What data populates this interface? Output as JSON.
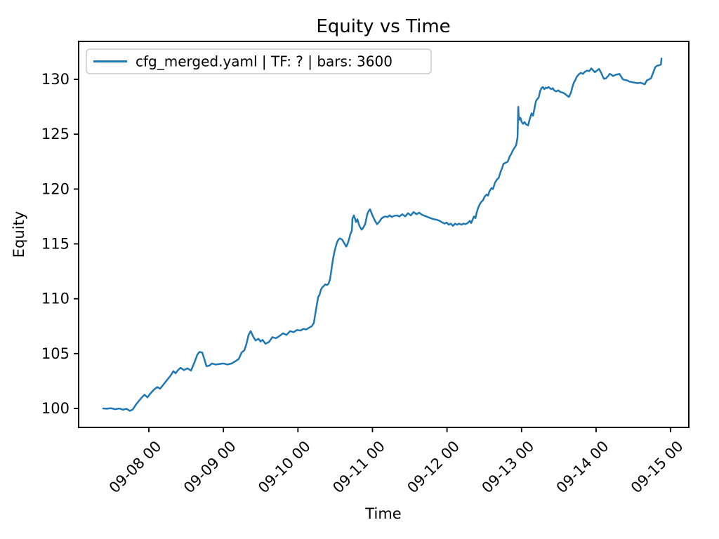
{
  "figure": {
    "title": "Equity vs Time",
    "xlabel": "Time",
    "ylabel": "Equity"
  },
  "chart_data": {
    "type": "line",
    "title": "Equity vs Time",
    "xlabel": "Time",
    "ylabel": "Equity",
    "grid": false,
    "legend_position": "upper left",
    "x_unit": "days relative to 09-08 00 tick",
    "xlim": [
      -0.942,
      7.244
    ],
    "ylim": [
      98.27,
      133.46
    ],
    "y_ticks": [
      100,
      105,
      110,
      115,
      120,
      125,
      130
    ],
    "x_ticks": [
      {
        "t": 0,
        "label": "09-08 00"
      },
      {
        "t": 1,
        "label": "09-09 00"
      },
      {
        "t": 2,
        "label": "09-10 00"
      },
      {
        "t": 3,
        "label": "09-11 00"
      },
      {
        "t": 4,
        "label": "09-12 00"
      },
      {
        "t": 5,
        "label": "09-13 00"
      },
      {
        "t": 6,
        "label": "09-14 00"
      },
      {
        "t": 7,
        "label": "09-15 00"
      }
    ],
    "series": [
      {
        "name": "cfg_merged.yaml | TF: ? | bars: 3600",
        "color": "#1f77b4",
        "points": [
          [
            -0.612,
            100.0
          ],
          [
            -0.565,
            99.97
          ],
          [
            -0.509,
            100.02
          ],
          [
            -0.452,
            99.93
          ],
          [
            -0.396,
            100.0
          ],
          [
            -0.349,
            99.88
          ],
          [
            -0.301,
            99.97
          ],
          [
            -0.254,
            99.78
          ],
          [
            -0.217,
            99.9
          ],
          [
            -0.179,
            100.3
          ],
          [
            -0.132,
            100.7
          ],
          [
            -0.094,
            101.0
          ],
          [
            -0.057,
            101.25
          ],
          [
            -0.019,
            101.0
          ],
          [
            0.019,
            101.35
          ],
          [
            0.066,
            101.7
          ],
          [
            0.113,
            101.95
          ],
          [
            0.151,
            101.8
          ],
          [
            0.198,
            102.2
          ],
          [
            0.245,
            102.6
          ],
          [
            0.292,
            103.0
          ],
          [
            0.33,
            103.4
          ],
          [
            0.358,
            103.2
          ],
          [
            0.386,
            103.45
          ],
          [
            0.424,
            103.7
          ],
          [
            0.471,
            103.5
          ],
          [
            0.518,
            103.65
          ],
          [
            0.565,
            103.45
          ],
          [
            0.612,
            104.2
          ],
          [
            0.65,
            104.9
          ],
          [
            0.678,
            105.15
          ],
          [
            0.716,
            105.1
          ],
          [
            0.744,
            104.5
          ],
          [
            0.773,
            103.85
          ],
          [
            0.81,
            103.9
          ],
          [
            0.848,
            104.1
          ],
          [
            0.895,
            104.0
          ],
          [
            0.942,
            104.05
          ],
          [
            0.999,
            104.1
          ],
          [
            1.055,
            104.0
          ],
          [
            1.112,
            104.1
          ],
          [
            1.159,
            104.3
          ],
          [
            1.206,
            104.5
          ],
          [
            1.244,
            105.1
          ],
          [
            1.281,
            105.3
          ],
          [
            1.31,
            105.9
          ],
          [
            1.338,
            106.7
          ],
          [
            1.366,
            107.05
          ],
          [
            1.404,
            106.5
          ],
          [
            1.432,
            106.2
          ],
          [
            1.47,
            106.35
          ],
          [
            1.498,
            106.1
          ],
          [
            1.526,
            106.25
          ],
          [
            1.564,
            105.9
          ],
          [
            1.611,
            106.05
          ],
          [
            1.658,
            106.5
          ],
          [
            1.705,
            106.4
          ],
          [
            1.752,
            106.6
          ],
          [
            1.8,
            106.85
          ],
          [
            1.847,
            106.7
          ],
          [
            1.894,
            107.05
          ],
          [
            1.941,
            106.95
          ],
          [
            1.988,
            107.15
          ],
          [
            2.035,
            107.1
          ],
          [
            2.073,
            107.25
          ],
          [
            2.11,
            107.2
          ],
          [
            2.148,
            107.35
          ],
          [
            2.186,
            107.5
          ],
          [
            2.214,
            107.8
          ],
          [
            2.233,
            108.6
          ],
          [
            2.252,
            109.4
          ],
          [
            2.271,
            110.15
          ],
          [
            2.289,
            110.35
          ],
          [
            2.308,
            110.8
          ],
          [
            2.327,
            111.05
          ],
          [
            2.346,
            111.15
          ],
          [
            2.365,
            111.3
          ],
          [
            2.393,
            111.25
          ],
          [
            2.412,
            111.4
          ],
          [
            2.431,
            111.8
          ],
          [
            2.45,
            112.7
          ],
          [
            2.468,
            113.5
          ],
          [
            2.487,
            114.2
          ],
          [
            2.506,
            114.7
          ],
          [
            2.525,
            115.15
          ],
          [
            2.544,
            115.4
          ],
          [
            2.563,
            115.5
          ],
          [
            2.591,
            115.4
          ],
          [
            2.619,
            115.1
          ],
          [
            2.647,
            114.75
          ],
          [
            2.666,
            115.0
          ],
          [
            2.685,
            115.4
          ],
          [
            2.704,
            115.9
          ],
          [
            2.723,
            116.2
          ],
          [
            2.732,
            117.3
          ],
          [
            2.751,
            117.6
          ],
          [
            2.761,
            117.4
          ],
          [
            2.779,
            117.0
          ],
          [
            2.798,
            117.25
          ],
          [
            2.817,
            116.8
          ],
          [
            2.836,
            116.5
          ],
          [
            2.855,
            116.3
          ],
          [
            2.874,
            116.45
          ],
          [
            2.902,
            116.8
          ],
          [
            2.93,
            117.7
          ],
          [
            2.949,
            118.0
          ],
          [
            2.968,
            118.15
          ],
          [
            2.987,
            117.8
          ],
          [
            3.006,
            117.5
          ],
          [
            3.034,
            117.1
          ],
          [
            3.062,
            116.8
          ],
          [
            3.09,
            117.0
          ],
          [
            3.119,
            117.3
          ],
          [
            3.147,
            117.45
          ],
          [
            3.175,
            117.5
          ],
          [
            3.203,
            117.45
          ],
          [
            3.231,
            117.6
          ],
          [
            3.26,
            117.45
          ],
          [
            3.288,
            117.55
          ],
          [
            3.326,
            117.6
          ],
          [
            3.363,
            117.5
          ],
          [
            3.401,
            117.7
          ],
          [
            3.439,
            117.5
          ],
          [
            3.477,
            117.8
          ],
          [
            3.514,
            117.6
          ],
          [
            3.552,
            117.9
          ],
          [
            3.59,
            117.7
          ],
          [
            3.627,
            117.85
          ],
          [
            3.665,
            117.65
          ],
          [
            3.703,
            117.55
          ],
          [
            3.741,
            117.45
          ],
          [
            3.778,
            117.35
          ],
          [
            3.825,
            117.25
          ],
          [
            3.863,
            117.2
          ],
          [
            3.901,
            117.1
          ],
          [
            3.938,
            116.95
          ],
          [
            3.967,
            116.85
          ],
          [
            3.995,
            116.95
          ],
          [
            4.023,
            116.75
          ],
          [
            4.051,
            116.85
          ],
          [
            4.08,
            116.65
          ],
          [
            4.108,
            116.85
          ],
          [
            4.136,
            116.75
          ],
          [
            4.164,
            116.85
          ],
          [
            4.193,
            116.75
          ],
          [
            4.221,
            116.85
          ],
          [
            4.249,
            116.8
          ],
          [
            4.277,
            116.9
          ],
          [
            4.306,
            117.1
          ],
          [
            4.325,
            116.9
          ],
          [
            4.343,
            117.2
          ],
          [
            4.362,
            117.5
          ],
          [
            4.381,
            117.35
          ],
          [
            4.4,
            117.9
          ],
          [
            4.419,
            118.3
          ],
          [
            4.438,
            118.6
          ],
          [
            4.457,
            118.8
          ],
          [
            4.485,
            119.0
          ],
          [
            4.504,
            119.3
          ],
          [
            4.532,
            119.5
          ],
          [
            4.551,
            119.4
          ],
          [
            4.57,
            119.8
          ],
          [
            4.598,
            120.1
          ],
          [
            4.617,
            120.0
          ],
          [
            4.645,
            120.6
          ],
          [
            4.673,
            120.9
          ],
          [
            4.692,
            121.0
          ],
          [
            4.72,
            121.6
          ],
          [
            4.739,
            121.9
          ],
          [
            4.758,
            122.3
          ],
          [
            4.786,
            122.4
          ],
          [
            4.815,
            122.5
          ],
          [
            4.843,
            123.0
          ],
          [
            4.862,
            123.2
          ],
          [
            4.881,
            123.5
          ],
          [
            4.909,
            123.8
          ],
          [
            4.928,
            124.0
          ],
          [
            4.946,
            124.7
          ],
          [
            4.956,
            127.5
          ],
          [
            4.965,
            126.3
          ],
          [
            4.984,
            126.5
          ],
          [
            5.003,
            126.1
          ],
          [
            5.022,
            125.95
          ],
          [
            5.041,
            126.1
          ],
          [
            5.06,
            125.9
          ],
          [
            5.088,
            125.8
          ],
          [
            5.107,
            126.3
          ],
          [
            5.135,
            126.9
          ],
          [
            5.154,
            126.7
          ],
          [
            5.173,
            127.3
          ],
          [
            5.192,
            128.0
          ],
          [
            5.211,
            128.2
          ],
          [
            5.23,
            128.35
          ],
          [
            5.248,
            128.9
          ],
          [
            5.267,
            129.2
          ],
          [
            5.286,
            129.3
          ],
          [
            5.305,
            129.1
          ],
          [
            5.324,
            129.25
          ],
          [
            5.343,
            129.2
          ],
          [
            5.361,
            129.3
          ],
          [
            5.38,
            129.2
          ],
          [
            5.399,
            129.1
          ],
          [
            5.418,
            129.2
          ],
          [
            5.437,
            129.0
          ],
          [
            5.465,
            128.9
          ],
          [
            5.493,
            129.0
          ],
          [
            5.522,
            128.85
          ],
          [
            5.55,
            128.8
          ],
          [
            5.578,
            128.7
          ],
          [
            5.606,
            128.55
          ],
          [
            5.635,
            128.4
          ],
          [
            5.663,
            128.8
          ],
          [
            5.682,
            129.3
          ],
          [
            5.701,
            129.7
          ],
          [
            5.719,
            129.9
          ],
          [
            5.738,
            130.2
          ],
          [
            5.767,
            130.45
          ],
          [
            5.795,
            130.6
          ],
          [
            5.823,
            130.5
          ],
          [
            5.851,
            130.7
          ],
          [
            5.88,
            130.8
          ],
          [
            5.908,
            130.75
          ],
          [
            5.936,
            131.0
          ],
          [
            5.964,
            130.8
          ],
          [
            5.983,
            130.65
          ],
          [
            6.011,
            130.8
          ],
          [
            6.04,
            130.95
          ],
          [
            6.068,
            130.6
          ],
          [
            6.087,
            130.3
          ],
          [
            6.106,
            130.05
          ],
          [
            6.134,
            130.1
          ],
          [
            6.162,
            130.3
          ],
          [
            6.181,
            130.5
          ],
          [
            6.2,
            130.45
          ],
          [
            6.228,
            130.3
          ],
          [
            6.257,
            130.4
          ],
          [
            6.285,
            130.45
          ],
          [
            6.313,
            130.5
          ],
          [
            6.341,
            130.2
          ],
          [
            6.36,
            130.0
          ],
          [
            6.388,
            129.95
          ],
          [
            6.417,
            129.9
          ],
          [
            6.445,
            129.8
          ],
          [
            6.483,
            129.75
          ],
          [
            6.52,
            129.7
          ],
          [
            6.558,
            129.65
          ],
          [
            6.596,
            129.7
          ],
          [
            6.633,
            129.6
          ],
          [
            6.652,
            129.55
          ],
          [
            6.681,
            129.9
          ],
          [
            6.709,
            130.0
          ],
          [
            6.737,
            130.1
          ],
          [
            6.765,
            130.6
          ],
          [
            6.793,
            131.1
          ],
          [
            6.822,
            131.25
          ],
          [
            6.85,
            131.3
          ],
          [
            6.869,
            131.35
          ],
          [
            6.878,
            131.9
          ]
        ]
      }
    ]
  },
  "colors": {
    "line": "#1f77b4",
    "spine": "#000000",
    "legend_edge": "#cccccc",
    "background": "#ffffff"
  }
}
